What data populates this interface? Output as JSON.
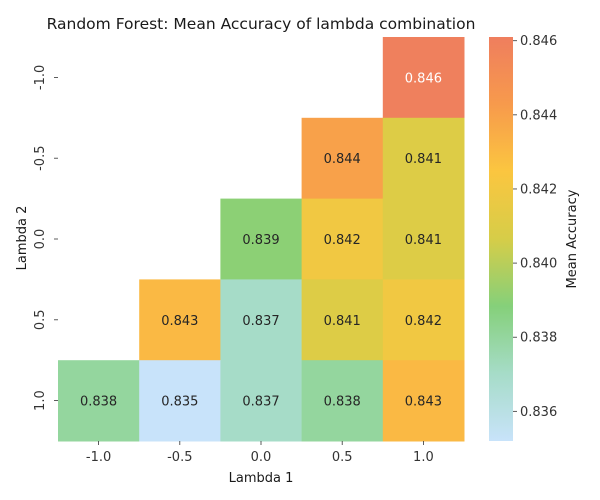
{
  "chart_data": {
    "type": "heatmap",
    "title": "Random Forest: Mean Accuracy of lambda combination",
    "xlabel": "Lambda 1",
    "ylabel": "Lambda 2",
    "x_categories": [
      "-1.0",
      "-0.5",
      "0.0",
      "0.5",
      "1.0"
    ],
    "y_categories": [
      "-1.0",
      "-0.5",
      "0.0",
      "0.5",
      "1.0"
    ],
    "cells": [
      {
        "x": "1.0",
        "y": "-1.0",
        "value": 0.846
      },
      {
        "x": "0.5",
        "y": "-0.5",
        "value": 0.844
      },
      {
        "x": "1.0",
        "y": "-0.5",
        "value": 0.841
      },
      {
        "x": "0.0",
        "y": "0.0",
        "value": 0.839
      },
      {
        "x": "0.5",
        "y": "0.0",
        "value": 0.842
      },
      {
        "x": "1.0",
        "y": "0.0",
        "value": 0.841
      },
      {
        "x": "-0.5",
        "y": "0.5",
        "value": 0.843
      },
      {
        "x": "0.0",
        "y": "0.5",
        "value": 0.837
      },
      {
        "x": "0.5",
        "y": "0.5",
        "value": 0.841
      },
      {
        "x": "1.0",
        "y": "0.5",
        "value": 0.842
      },
      {
        "x": "-1.0",
        "y": "1.0",
        "value": 0.838
      },
      {
        "x": "-0.5",
        "y": "1.0",
        "value": 0.835
      },
      {
        "x": "0.0",
        "y": "1.0",
        "value": 0.837
      },
      {
        "x": "0.5",
        "y": "1.0",
        "value": 0.838
      },
      {
        "x": "1.0",
        "y": "1.0",
        "value": 0.843
      }
    ],
    "colorbar": {
      "label": "Mean Accuracy",
      "range": [
        0.8352,
        0.8461
      ],
      "ticks": [
        "0.836",
        "0.838",
        "0.840",
        "0.842",
        "0.844",
        "0.846"
      ],
      "colors": [
        "#c8e3fa",
        "#a6dcc8",
        "#85d07a",
        "#d6cd48",
        "#fbc640",
        "#f79a4c",
        "#ef7e5e"
      ]
    },
    "grid": false
  }
}
